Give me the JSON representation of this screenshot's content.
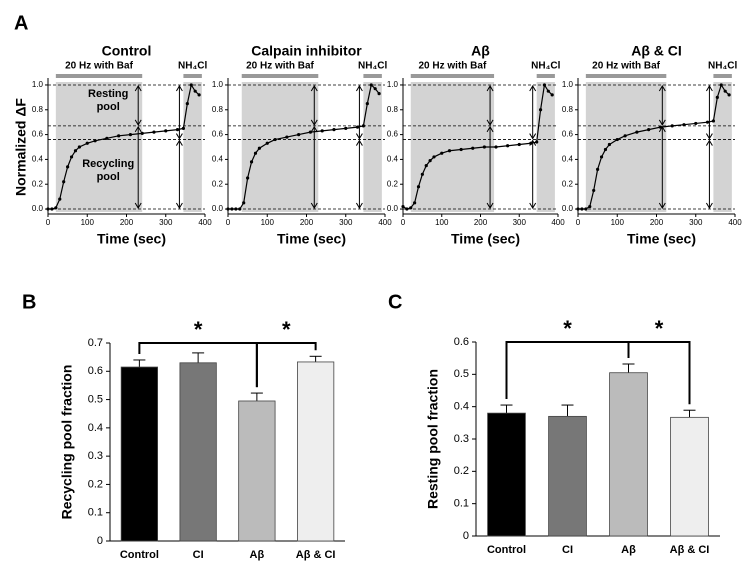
{
  "panels": [
    "A",
    "B",
    "C"
  ],
  "chart_data": [
    {
      "type": "line",
      "title": "Control",
      "xlabel": "Time (sec)",
      "ylabel": "Normalized ΔF",
      "xlim": [
        0,
        400
      ],
      "xticks": [
        0,
        100,
        200,
        300,
        400
      ],
      "ylim": [
        -0.04,
        1.04
      ],
      "yticks": [
        {
          "value": 0,
          "label": "0.0"
        },
        0.2,
        0.4,
        0.6,
        0.8,
        {
          "value": 1,
          "label": "1.0"
        }
      ],
      "x": [
        0,
        10,
        20,
        30,
        40,
        50,
        60,
        70,
        80,
        100,
        120,
        150,
        180,
        210,
        240,
        270,
        300,
        330,
        345,
        355,
        365,
        375,
        385
      ],
      "values": [
        0,
        0,
        0.01,
        0.08,
        0.22,
        0.34,
        0.42,
        0.47,
        0.5,
        0.53,
        0.55,
        0.57,
        0.59,
        0.6,
        0.61,
        0.62,
        0.63,
        0.64,
        0.65,
        0.85,
        1.0,
        0.95,
        0.92
      ],
      "color": "#000000",
      "spans": [
        [
          20,
          240
        ],
        [
          345,
          392
        ]
      ],
      "span_labels": [
        "20 Hz with Baf",
        "NH₄Cl"
      ],
      "hlines": [
        0,
        0.56,
        0.67,
        1.0
      ],
      "annotations": [
        "Resting pool",
        "Recycling pool"
      ]
    },
    {
      "type": "line",
      "title": "Calpain inhibitor",
      "xlabel": "Time (sec)",
      "xlim": [
        0,
        400
      ],
      "xticks": [
        0,
        100,
        200,
        300,
        400
      ],
      "ylim": [
        -0.04,
        1.04
      ],
      "yticks": [
        {
          "value": 0,
          "label": "0.0"
        },
        0.2,
        0.4,
        0.6,
        0.8,
        {
          "value": 1,
          "label": "1.0"
        }
      ],
      "x": [
        0,
        10,
        20,
        30,
        40,
        50,
        60,
        70,
        80,
        100,
        120,
        150,
        180,
        210,
        240,
        270,
        300,
        330,
        345,
        355,
        365,
        375,
        385
      ],
      "values": [
        0,
        0,
        0,
        0,
        0.05,
        0.25,
        0.38,
        0.45,
        0.49,
        0.53,
        0.56,
        0.58,
        0.6,
        0.62,
        0.63,
        0.64,
        0.65,
        0.66,
        0.67,
        0.85,
        1.0,
        0.97,
        0.93
      ],
      "color": "#000000",
      "spans": [
        [
          35,
          230
        ],
        [
          345,
          392
        ]
      ],
      "span_labels": [
        "20 Hz with Baf",
        "NH₄Cl"
      ],
      "hlines": [
        0,
        0.56,
        0.67,
        1.0
      ]
    },
    {
      "type": "line",
      "title": "Aβ",
      "xlabel": "Time (sec)",
      "xlim": [
        0,
        400
      ],
      "xticks": [
        0,
        100,
        200,
        300,
        400
      ],
      "ylim": [
        -0.04,
        1.04
      ],
      "yticks": [
        {
          "value": 0,
          "label": "0.0"
        },
        0.2,
        0.4,
        0.6,
        0.8,
        {
          "value": 1,
          "label": "1.0"
        }
      ],
      "x": [
        0,
        10,
        20,
        30,
        40,
        50,
        60,
        70,
        80,
        100,
        120,
        150,
        180,
        210,
        240,
        270,
        300,
        330,
        345,
        355,
        365,
        375,
        385
      ],
      "values": [
        0.02,
        0,
        0.01,
        0.05,
        0.18,
        0.28,
        0.35,
        0.39,
        0.42,
        0.45,
        0.47,
        0.48,
        0.49,
        0.5,
        0.5,
        0.51,
        0.52,
        0.53,
        0.54,
        0.8,
        1.0,
        0.95,
        0.92
      ],
      "color": "#000000",
      "spans": [
        [
          20,
          235
        ],
        [
          345,
          392
        ]
      ],
      "span_labels": [
        "20 Hz with Baf",
        "NH₄Cl"
      ],
      "hlines": [
        0,
        0.56,
        0.67,
        1.0
      ]
    },
    {
      "type": "line",
      "title": "Aβ & CI",
      "xlabel": "Time (sec)",
      "xlim": [
        0,
        400
      ],
      "xticks": [
        0,
        100,
        200,
        300,
        400
      ],
      "ylim": [
        -0.04,
        1.04
      ],
      "yticks": [
        {
          "value": 0,
          "label": "0.0"
        },
        0.2,
        0.4,
        0.6,
        0.8,
        {
          "value": 1,
          "label": "1.0"
        }
      ],
      "x": [
        0,
        10,
        20,
        30,
        40,
        50,
        60,
        70,
        80,
        100,
        120,
        150,
        180,
        210,
        240,
        270,
        300,
        330,
        345,
        355,
        365,
        375,
        385
      ],
      "values": [
        0,
        0,
        0,
        0.02,
        0.15,
        0.32,
        0.42,
        0.48,
        0.52,
        0.56,
        0.59,
        0.62,
        0.64,
        0.66,
        0.67,
        0.68,
        0.69,
        0.7,
        0.71,
        0.9,
        1.0,
        0.95,
        0.92
      ],
      "color": "#000000",
      "spans": [
        [
          20,
          225
        ],
        [
          345,
          392
        ]
      ],
      "span_labels": [
        "20 Hz with Baf",
        "NH₄Cl"
      ],
      "hlines": [
        0,
        0.56,
        0.67,
        1.0
      ]
    },
    {
      "type": "bar",
      "ylabel": "Recycling pool fraction",
      "categories": [
        "Control",
        "CI",
        "Aβ",
        "Aβ & CI"
      ],
      "values": [
        0.615,
        0.63,
        0.495,
        0.633
      ],
      "errors": [
        0.025,
        0.035,
        0.028,
        0.02
      ],
      "colors": [
        "#000000",
        "#777777",
        "#bbbbbb",
        "#eeeeee"
      ],
      "ylim": [
        0,
        0.7
      ],
      "yticks": [
        0,
        0.1,
        0.2,
        0.3,
        0.4,
        0.5,
        0.6,
        0.7
      ],
      "significance": [
        {
          "pair": [
            0,
            2
          ],
          "label": "*"
        },
        {
          "pair": [
            2,
            3
          ],
          "label": "*"
        }
      ]
    },
    {
      "type": "bar",
      "ylabel": "Resting pool fraction",
      "categories": [
        "Control",
        "CI",
        "Aβ",
        "Aβ & CI"
      ],
      "values": [
        0.38,
        0.37,
        0.505,
        0.367
      ],
      "errors": [
        0.025,
        0.035,
        0.027,
        0.022
      ],
      "colors": [
        "#000000",
        "#777777",
        "#bbbbbb",
        "#eeeeee"
      ],
      "ylim": [
        0,
        0.6
      ],
      "yticks": [
        0,
        0.1,
        0.2,
        0.3,
        0.4,
        0.5,
        0.6
      ],
      "significance": [
        {
          "pair": [
            0,
            2
          ],
          "label": "*"
        },
        {
          "pair": [
            2,
            3
          ],
          "label": "*"
        }
      ]
    }
  ]
}
